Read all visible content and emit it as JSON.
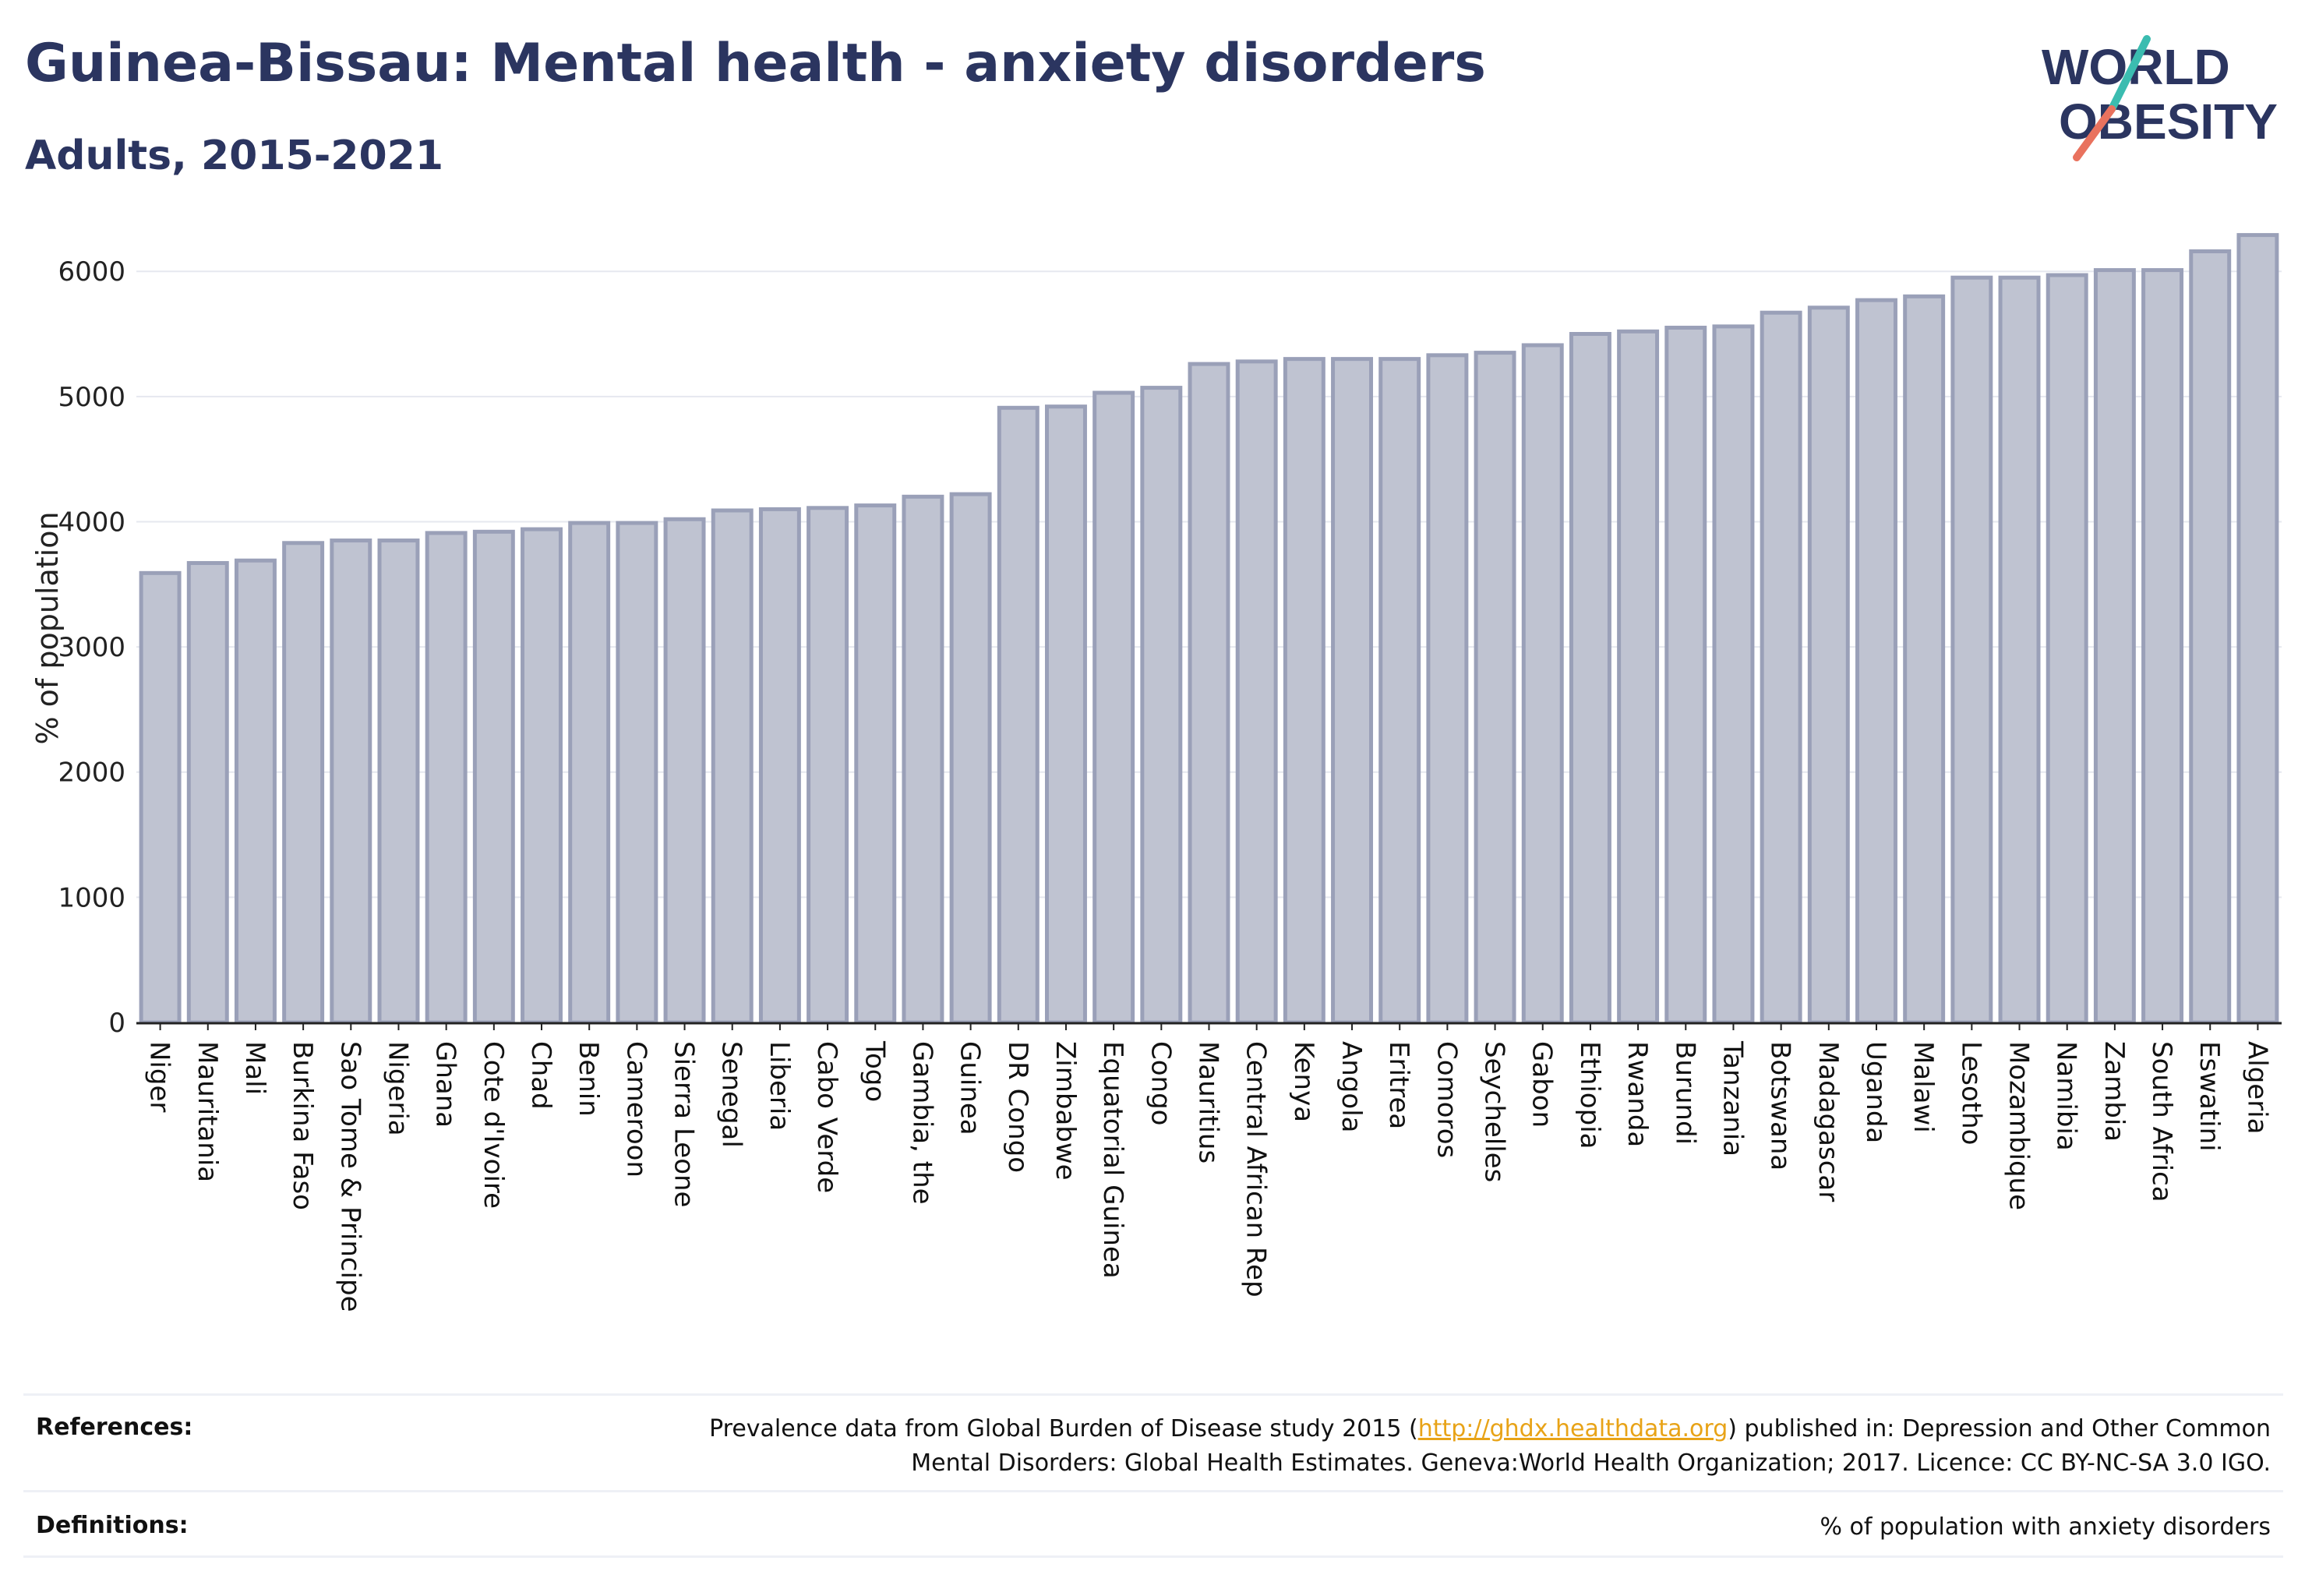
{
  "title": "Guinea-Bissau: Mental health - anxiety disorders",
  "subtitle": "Adults, 2015-2021",
  "logo": {
    "line1": "WORLD",
    "line2": "OBESITY"
  },
  "colors": {
    "bar_fill": "#bfc3d1",
    "bar_stroke": "#9aa0b8",
    "text": "#2b3560",
    "grid": "#e6e8ef",
    "link": "#e8a317"
  },
  "chart_data": {
    "type": "bar",
    "ylabel": "% of population",
    "xlabel": "",
    "ylim": [
      0,
      6300
    ],
    "yticks": [
      0,
      1000,
      2000,
      3000,
      4000,
      5000,
      6000
    ],
    "grid": true,
    "categories": [
      "Niger",
      "Mauritania",
      "Mali",
      "Burkina Faso",
      "Sao Tome & Principe",
      "Nigeria",
      "Ghana",
      "Cote d'Ivoire",
      "Chad",
      "Benin",
      "Cameroon",
      "Sierra Leone",
      "Senegal",
      "Liberia",
      "Cabo Verde",
      "Togo",
      "Gambia, the",
      "Guinea",
      "DR Congo",
      "Zimbabwe",
      "Equatorial Guinea",
      "Congo",
      "Mauritius",
      "Central African Rep",
      "Kenya",
      "Angola",
      "Eritrea",
      "Comoros",
      "Seychelles",
      "Gabon",
      "Ethiopia",
      "Rwanda",
      "Burundi",
      "Tanzania",
      "Botswana",
      "Madagascar",
      "Uganda",
      "Malawi",
      "Lesotho",
      "Mozambique",
      "Namibia",
      "Zambia",
      "South Africa",
      "Eswatini",
      "Algeria"
    ],
    "values": [
      3590,
      3670,
      3690,
      3830,
      3850,
      3850,
      3910,
      3920,
      3940,
      3990,
      3990,
      4020,
      4090,
      4100,
      4110,
      4130,
      4200,
      4220,
      4910,
      4920,
      5030,
      5070,
      5260,
      5280,
      5300,
      5300,
      5300,
      5330,
      5350,
      5410,
      5500,
      5520,
      5550,
      5560,
      5670,
      5710,
      5770,
      5800,
      5950,
      5950,
      5970,
      6010,
      6010,
      6160,
      6290
    ]
  },
  "references": {
    "label": "References:",
    "text_before": "Prevalence data from Global Burden of Disease study 2015 (",
    "link": "http://ghdx.healthdata.org",
    "text_after": ") published in: Depression and Other Common",
    "line2": "Mental Disorders: Global Health Estimates. Geneva:World Health Organization; 2017. Licence: CC BY-NC-SA 3.0 IGO."
  },
  "definitions": {
    "label": "Definitions:",
    "text": "% of population with anxiety disorders"
  }
}
